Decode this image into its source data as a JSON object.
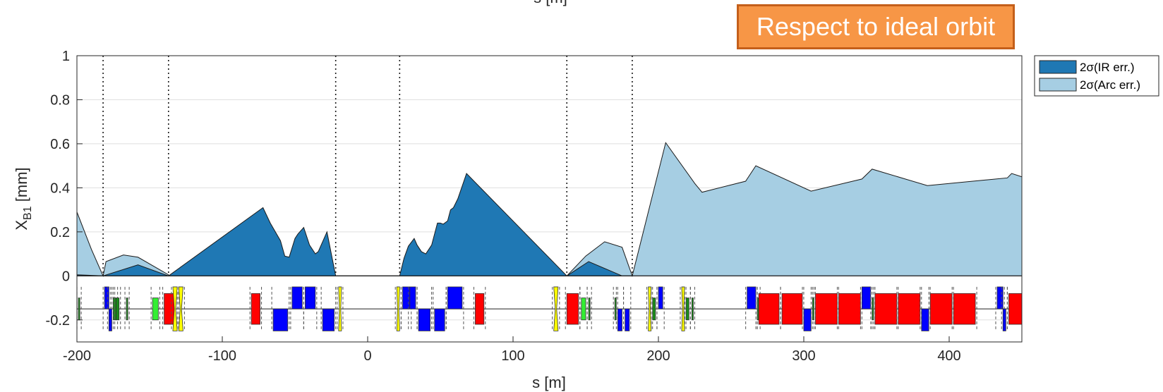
{
  "annotation": {
    "text": "Respect to ideal orbit",
    "bg_color": "#f79646",
    "border_color": "#c45f1a"
  },
  "top_label_partial": "s [m]",
  "chart_data": {
    "type": "area",
    "xlabel": "s [m]",
    "ylabel_main": "X",
    "ylabel_sub": "B1",
    "ylabel_unit": " [mm]",
    "xlim": [
      -200,
      450
    ],
    "ylim": [
      -0.3,
      1
    ],
    "xticks": [
      -200,
      -100,
      0,
      100,
      200,
      300,
      400
    ],
    "yticks": [
      1,
      0.8,
      0.6,
      0.4,
      0.2,
      0,
      -0.2
    ],
    "legend_position": "top-right outside",
    "vlines_dotted": [
      -182,
      -137,
      -22,
      22,
      137,
      182
    ],
    "beamline_axis_y": -0.15,
    "series": [
      {
        "name": "2σ(Arc err.)",
        "color": "#a6cee3",
        "x": [
          -200,
          -190,
          -182,
          -180,
          -168,
          -158,
          -137,
          -137,
          137,
          150,
          163,
          175,
          182,
          182,
          205,
          225,
          230,
          260,
          267,
          305,
          340,
          347,
          385,
          440,
          443,
          450
        ],
        "y": [
          0.29,
          0.12,
          0.0,
          0.065,
          0.095,
          0.085,
          0.005,
          0.0,
          0.0,
          0.09,
          0.155,
          0.13,
          0.0,
          0.0,
          0.605,
          0.42,
          0.38,
          0.43,
          0.5,
          0.385,
          0.44,
          0.485,
          0.41,
          0.445,
          0.465,
          0.45
        ]
      },
      {
        "name": "2σ(IR err.)",
        "color": "#1f78b4",
        "x": [
          -200,
          -182,
          -182,
          -158,
          -137,
          -137,
          -72,
          -67,
          -60,
          -57,
          -54,
          -50,
          -48,
          -44,
          -40,
          -36,
          -34,
          -28,
          -22,
          -22,
          22,
          22,
          25,
          28,
          32,
          34,
          37,
          40,
          44,
          48,
          50,
          52,
          55,
          57,
          59,
          62,
          68,
          137,
          137,
          152,
          175,
          182,
          182
        ],
        "y": [
          0.005,
          0.0,
          0.0,
          0.05,
          0.0,
          0.0,
          0.31,
          0.24,
          0.16,
          0.09,
          0.085,
          0.17,
          0.19,
          0.22,
          0.14,
          0.1,
          0.11,
          0.2,
          0.0,
          0.0,
          0.0,
          0.0,
          0.08,
          0.135,
          0.17,
          0.14,
          0.11,
          0.1,
          0.14,
          0.24,
          0.24,
          0.235,
          0.25,
          0.3,
          0.31,
          0.35,
          0.465,
          0.0,
          0.0,
          0.065,
          0.0,
          0.0,
          0.0
        ]
      }
    ],
    "legend_order": [
      "2σ(IR err.)",
      "2σ(Arc err.)"
    ],
    "magnets": [
      {
        "s": -199,
        "w": 1,
        "type": "sext"
      },
      {
        "s": -181,
        "w": 3,
        "type": "quad_f"
      },
      {
        "s": -178,
        "w": 2,
        "type": "quad_d"
      },
      {
        "s": -175,
        "w": 2,
        "type": "sext"
      },
      {
        "s": -173,
        "w": 2,
        "type": "sext"
      },
      {
        "s": -166,
        "w": 1,
        "type": "sext"
      },
      {
        "s": -148,
        "w": 4,
        "type": "corr"
      },
      {
        "s": -140,
        "w": 7,
        "type": "dipole"
      },
      {
        "s": -134,
        "w": 3,
        "type": "crab"
      },
      {
        "s": -130,
        "w": 3,
        "type": "crab"
      },
      {
        "s": -80,
        "w": 6,
        "type": "dipole"
      },
      {
        "s": -65,
        "w": 10,
        "type": "quad_d"
      },
      {
        "s": -52,
        "w": 7,
        "type": "quad_f"
      },
      {
        "s": -43,
        "w": 7,
        "type": "quad_f"
      },
      {
        "s": -31,
        "w": 8,
        "type": "quad_d"
      },
      {
        "s": -20,
        "w": 2,
        "type": "crab"
      },
      {
        "s": 20,
        "w": 2,
        "type": "crab"
      },
      {
        "s": 24,
        "w": 5,
        "type": "quad_f"
      },
      {
        "s": 29,
        "w": 4,
        "type": "quad_f"
      },
      {
        "s": 35,
        "w": 8,
        "type": "quad_d"
      },
      {
        "s": 46,
        "w": 7,
        "type": "quad_d"
      },
      {
        "s": 55,
        "w": 10,
        "type": "quad_f"
      },
      {
        "s": 74,
        "w": 6,
        "type": "dipole"
      },
      {
        "s": 128,
        "w": 3,
        "type": "crab"
      },
      {
        "s": 137,
        "w": 8,
        "type": "dipole"
      },
      {
        "s": 147,
        "w": 3,
        "type": "corr"
      },
      {
        "s": 152,
        "w": 1,
        "type": "sext"
      },
      {
        "s": 170,
        "w": 1,
        "type": "sext"
      },
      {
        "s": 172,
        "w": 3,
        "type": "quad_d"
      },
      {
        "s": 177,
        "w": 3,
        "type": "quad_d"
      },
      {
        "s": 193,
        "w": 2,
        "type": "crab"
      },
      {
        "s": 196,
        "w": 2,
        "type": "sext"
      },
      {
        "s": 200,
        "w": 3,
        "type": "quad_f"
      },
      {
        "s": 216,
        "w": 2,
        "type": "crab"
      },
      {
        "s": 219,
        "w": 2,
        "type": "sext"
      },
      {
        "s": 223,
        "w": 1,
        "type": "sext"
      },
      {
        "s": 261,
        "w": 6,
        "type": "quad_f"
      },
      {
        "s": 268,
        "w": 1,
        "type": "sext"
      },
      {
        "s": 269,
        "w": 14,
        "type": "dipole"
      },
      {
        "s": 285,
        "w": 14,
        "type": "dipole"
      },
      {
        "s": 300,
        "w": 5,
        "type": "quad_d"
      },
      {
        "s": 306,
        "w": 1,
        "type": "sext"
      },
      {
        "s": 308,
        "w": 15,
        "type": "dipole"
      },
      {
        "s": 324,
        "w": 15,
        "type": "dipole"
      },
      {
        "s": 340,
        "w": 6,
        "type": "quad_f"
      },
      {
        "s": 347,
        "w": 1,
        "type": "sext"
      },
      {
        "s": 349,
        "w": 15,
        "type": "dipole"
      },
      {
        "s": 365,
        "w": 15,
        "type": "dipole"
      },
      {
        "s": 381,
        "w": 5,
        "type": "quad_d"
      },
      {
        "s": 387,
        "w": 15,
        "type": "dipole"
      },
      {
        "s": 403,
        "w": 15,
        "type": "dipole"
      },
      {
        "s": 433,
        "w": 4,
        "type": "quad_f"
      },
      {
        "s": 437,
        "w": 2,
        "type": "quad_d"
      },
      {
        "s": 441,
        "w": 9,
        "type": "dipole"
      }
    ],
    "magnet_colors": {
      "dipole": "#ff0000",
      "quad_f": "#0000ff",
      "quad_d": "#0000ff",
      "sext": "#1a8c1a",
      "corr": "#33ee33",
      "crab": "#ffff00"
    }
  }
}
